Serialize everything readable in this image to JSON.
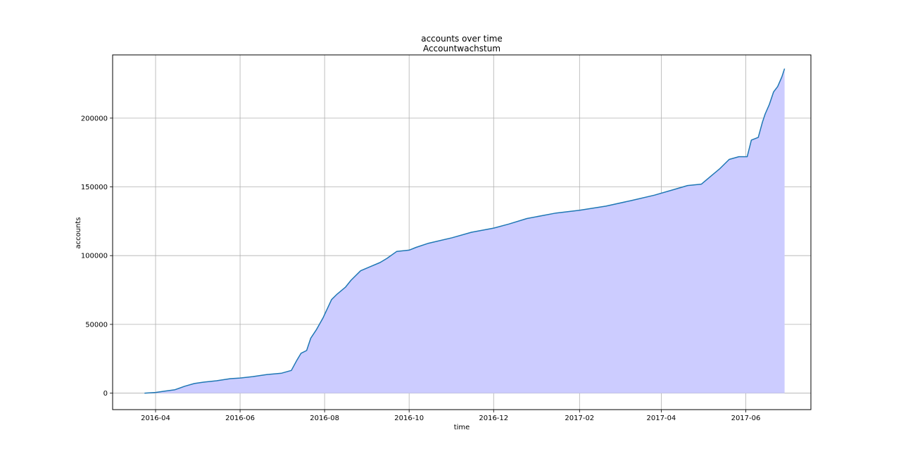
{
  "chart_data": {
    "type": "area",
    "title": "accounts over time",
    "subtitle": "Accountwachstum",
    "xlabel": "time",
    "ylabel": "accounts",
    "x_ticks": [
      "2016-04",
      "2016-06",
      "2016-08",
      "2016-10",
      "2016-12",
      "2017-02",
      "2017-04",
      "2017-06"
    ],
    "y_ticks": [
      "0",
      "50000",
      "100000",
      "150000",
      "200000"
    ],
    "y_tick_values": [
      0,
      50000,
      100000,
      150000,
      200000
    ],
    "xlim": [
      "2016-03-01",
      "2017-07-18"
    ],
    "ylim": [
      -12000,
      246000
    ],
    "grid": true,
    "line_color": "#1f77b4",
    "fill_color": "#ccccff",
    "series": [
      {
        "x": [
          "2016-03-24",
          "2016-04-01",
          "2016-04-08",
          "2016-04-15",
          "2016-04-22",
          "2016-04-29",
          "2016-05-06",
          "2016-05-15",
          "2016-05-25",
          "2016-06-01",
          "2016-06-10",
          "2016-06-20",
          "2016-07-01",
          "2016-07-08",
          "2016-07-12",
          "2016-07-15",
          "2016-07-19",
          "2016-07-22",
          "2016-07-26",
          "2016-07-31",
          "2016-08-06",
          "2016-08-10",
          "2016-08-16",
          "2016-08-20",
          "2016-08-27",
          "2016-09-03",
          "2016-09-10",
          "2016-09-15",
          "2016-09-22",
          "2016-10-01",
          "2016-10-06",
          "2016-10-15",
          "2016-11-01",
          "2016-11-15",
          "2016-12-01",
          "2016-12-12",
          "2016-12-25",
          "2017-01-15",
          "2017-02-01",
          "2017-02-20",
          "2017-03-10",
          "2017-03-27",
          "2017-04-10",
          "2017-04-20",
          "2017-04-30",
          "2017-05-07",
          "2017-05-13",
          "2017-05-20",
          "2017-05-27",
          "2017-06-02",
          "2017-06-05",
          "2017-06-10",
          "2017-06-13",
          "2017-06-15",
          "2017-06-18",
          "2017-06-21",
          "2017-06-24",
          "2017-06-27",
          "2017-06-29"
        ],
        "values": [
          0,
          500,
          1500,
          2500,
          5000,
          7000,
          8000,
          9000,
          10500,
          11000,
          12000,
          13500,
          14500,
          16500,
          24000,
          29000,
          31000,
          40000,
          46000,
          55000,
          68000,
          72000,
          77000,
          82000,
          89000,
          92000,
          95000,
          98000,
          103000,
          104000,
          106000,
          109000,
          113000,
          117000,
          120000,
          123000,
          127000,
          131000,
          133000,
          136000,
          140000,
          144000,
          148000,
          151000,
          152000,
          158000,
          163000,
          170000,
          172000,
          172000,
          184000,
          186000,
          197000,
          203000,
          210000,
          219000,
          223000,
          230000,
          236000
        ]
      }
    ]
  }
}
